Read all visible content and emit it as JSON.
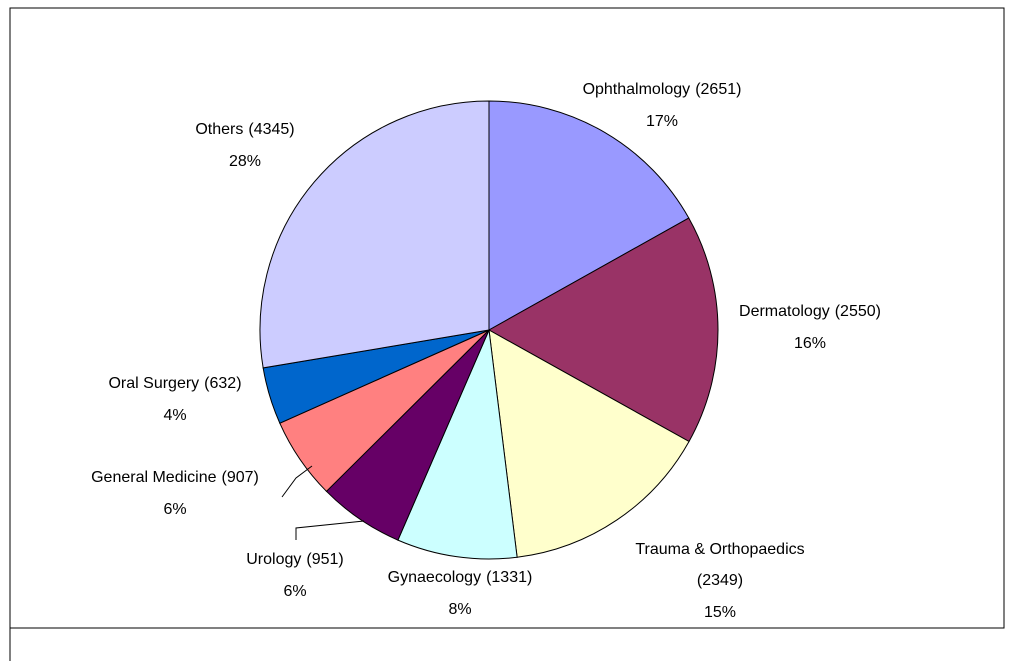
{
  "chart_data": {
    "type": "pie",
    "categories": [
      "Ophthalmology",
      "Dermatology",
      "Trauma & Orthopaedics",
      "Gynaecology",
      "Urology",
      "General Medicine",
      "Oral Surgery",
      "Others"
    ],
    "values": [
      2651,
      2550,
      2349,
      1331,
      951,
      907,
      632,
      4345
    ],
    "value_labels": [
      "(2651)",
      "(2550)",
      "(2349)",
      "(1331)",
      "(951)",
      "(907)",
      "(632)",
      "(4345)"
    ],
    "percentages": [
      17,
      16,
      15,
      8,
      6,
      6,
      4,
      28
    ],
    "percentage_labels": [
      "17%",
      "16%",
      "15%",
      "8%",
      "6%",
      "6%",
      "4%",
      "28%"
    ],
    "colors": [
      "#9999ff",
      "#993366",
      "#ffffcc",
      "#ccffff",
      "#660066",
      "#ff8080",
      "#0066cc",
      "#ccccff"
    ]
  }
}
